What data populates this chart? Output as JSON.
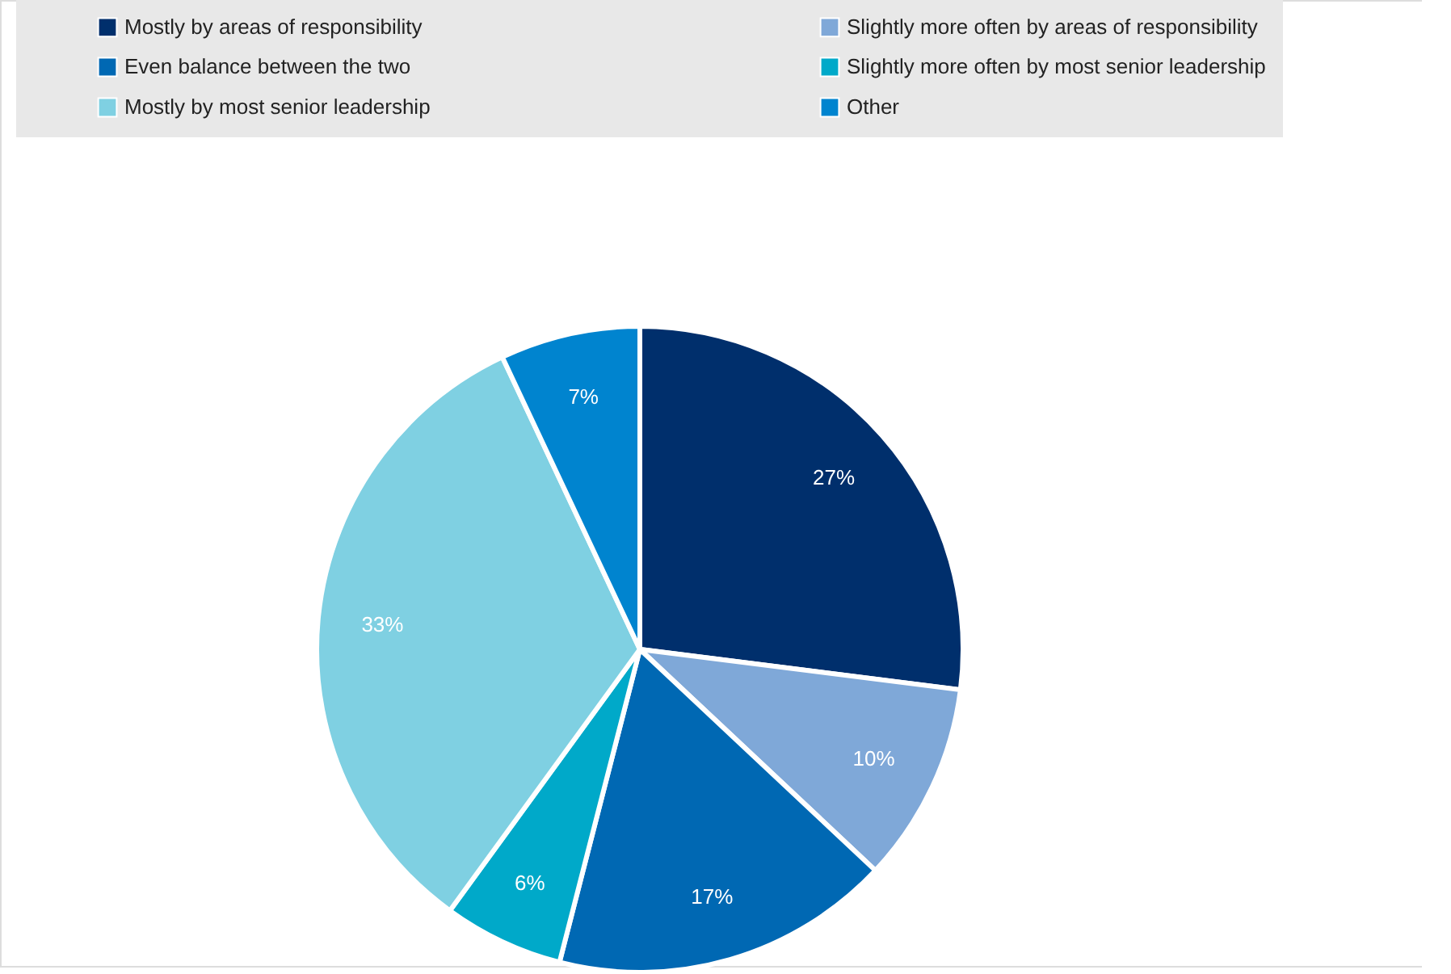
{
  "chart_data": {
    "type": "pie",
    "categories": [
      "Mostly by areas of responsibility",
      "Slightly more often by areas of responsibility",
      "Even balance between the two",
      "Slightly more often by most senior leadership",
      "Mostly by most senior leadership",
      "Other"
    ],
    "values": [
      27,
      10,
      17,
      6,
      33,
      7
    ],
    "colors": [
      "#002f6c",
      "#7fa8d8",
      "#0068b3",
      "#00a9c9",
      "#7fd0e2",
      "#0084cf"
    ],
    "value_labels": [
      "27%",
      "10%",
      "17%",
      "6%",
      "33%",
      "7%"
    ],
    "legend": "top"
  }
}
